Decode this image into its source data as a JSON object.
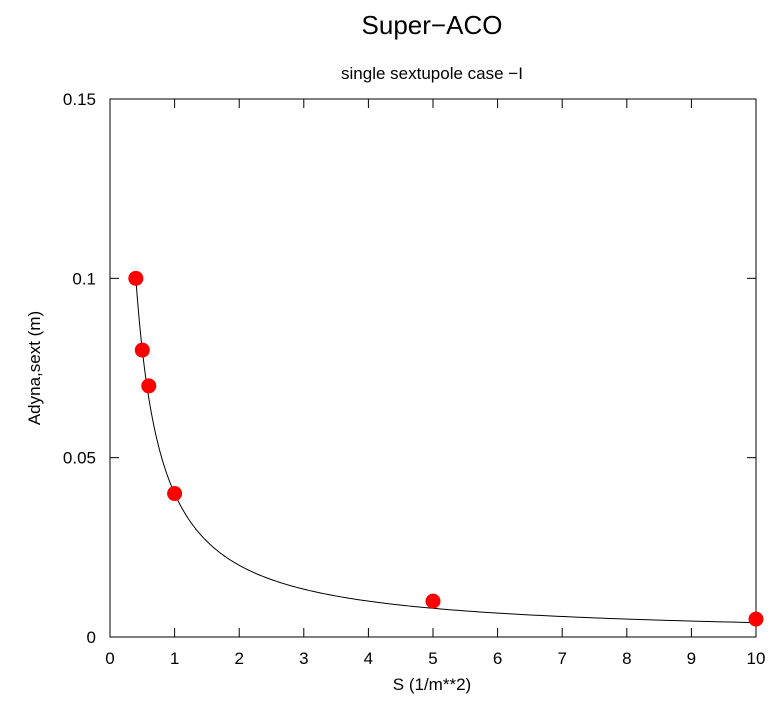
{
  "chart_data": {
    "type": "scatter",
    "title": "Super−ACO",
    "subtitle": "single sextupole case −I",
    "xlabel": "S (1/m**2)",
    "ylabel": "Adyna,sext (m)",
    "xlim": [
      0,
      10
    ],
    "ylim": [
      0,
      0.15
    ],
    "xticks": [
      0,
      1,
      2,
      3,
      4,
      5,
      6,
      7,
      8,
      9,
      10
    ],
    "xtick_labels": [
      "0",
      "1",
      "2",
      "3",
      "4",
      "5",
      "6",
      "7",
      "8",
      "9",
      "10"
    ],
    "yticks": [
      0,
      0.05,
      0.1,
      0.15
    ],
    "ytick_labels": [
      "0",
      "0.05",
      "0.1",
      "0.15"
    ],
    "grid": false,
    "legend": "none",
    "series": [
      {
        "kind": "points",
        "color": "#ff0000",
        "x": [
          0.4,
          0.5,
          0.6,
          1,
          5,
          10
        ],
        "y": [
          0.1,
          0.08,
          0.07,
          0.04,
          0.01,
          0.005
        ]
      },
      {
        "kind": "curve",
        "color": "#000000",
        "function": "y = k / x",
        "k": 0.04,
        "x_range": [
          0.4,
          10
        ]
      }
    ]
  }
}
